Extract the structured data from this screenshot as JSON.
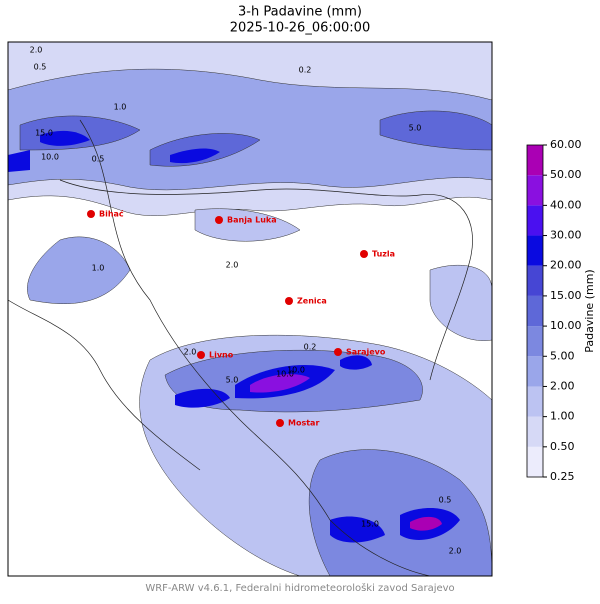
{
  "header": {
    "title": "3-h Padavine (mm)",
    "subtitle": "2025-10-26_06:00:00"
  },
  "colorbar": {
    "label": "Padavine (mm)",
    "ticks": [
      {
        "value": 0.25,
        "label": "0.25"
      },
      {
        "value": 0.5,
        "label": "0.50"
      },
      {
        "value": 1,
        "label": "1.00"
      },
      {
        "value": 2,
        "label": "2.00"
      },
      {
        "value": 5,
        "label": "5.00"
      },
      {
        "value": 10,
        "label": "10.00"
      },
      {
        "value": 15,
        "label": "15.00"
      },
      {
        "value": 20,
        "label": "20.00"
      },
      {
        "value": 30,
        "label": "30.00"
      },
      {
        "value": 40,
        "label": "40.00"
      },
      {
        "value": 50,
        "label": "50.00"
      },
      {
        "value": 60,
        "label": "60.00"
      }
    ],
    "colors": [
      "#ececfc",
      "#d6d9f6",
      "#bcc3f2",
      "#9aa6ea",
      "#7c88e0",
      "#5e68d8",
      "#4646d4",
      "#0a0ae0",
      "#4a10f0",
      "#8a10e0",
      "#aa00b4"
    ]
  },
  "cities": [
    "Bihać",
    "Banja Luka",
    "Tuzla",
    "Zenica",
    "Livno",
    "Sarajevo",
    "Mostar"
  ],
  "contour_labels": [
    "2.0",
    "0.5",
    "0.2",
    "1.0",
    "15.0",
    "10.0",
    "5.0",
    "0.5",
    "2.0",
    "1.0",
    "5.0",
    "10.0",
    "2.0",
    "0.2",
    "0.5",
    "15.0",
    "10.0",
    "2.0"
  ],
  "footer": "WRF-ARW v4.6.1, Federalni hidrometeorološki zavod Sarajevo"
}
